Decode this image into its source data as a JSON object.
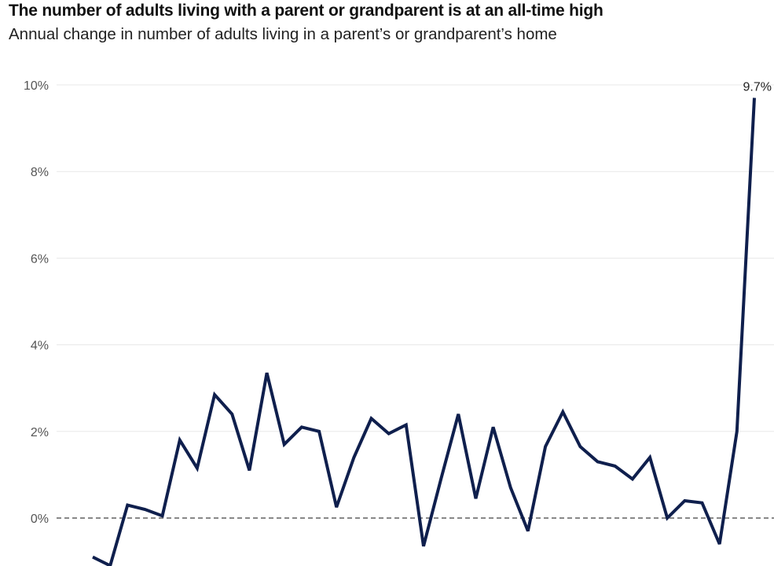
{
  "chart_data": {
    "type": "line",
    "title": "The number of adults living with a parent or grandparent is at an all-time high",
    "subtitle": "Annual change in number of adults living in a parent’s or grandparent’s home",
    "xlabel": "",
    "ylabel": "",
    "ylim": [
      -1.2,
      10
    ],
    "yticks": [
      0,
      2,
      4,
      6,
      8,
      10
    ],
    "ytick_labels": [
      "0%",
      "2%",
      "4%",
      "6%",
      "8%",
      "10%"
    ],
    "zero_line": "dashed",
    "grid": "horizontal",
    "line_color": "#0f1f4d",
    "series": [
      {
        "values": [
          -0.9,
          -1.1,
          0.3,
          0.2,
          0.05,
          1.8,
          1.15,
          2.85,
          2.4,
          1.1,
          3.35,
          1.7,
          2.1,
          2.0,
          0.25,
          1.4,
          2.3,
          1.95,
          2.15,
          -0.65,
          0.9,
          2.4,
          0.45,
          2.1,
          0.7,
          -0.3,
          1.65,
          2.45,
          1.65,
          1.3,
          1.2,
          0.9,
          1.4,
          0.0,
          0.4,
          0.35,
          -0.6,
          2.0,
          9.7
        ]
      }
    ],
    "annotations": [
      {
        "label": "9.7%",
        "point": "last"
      }
    ]
  }
}
